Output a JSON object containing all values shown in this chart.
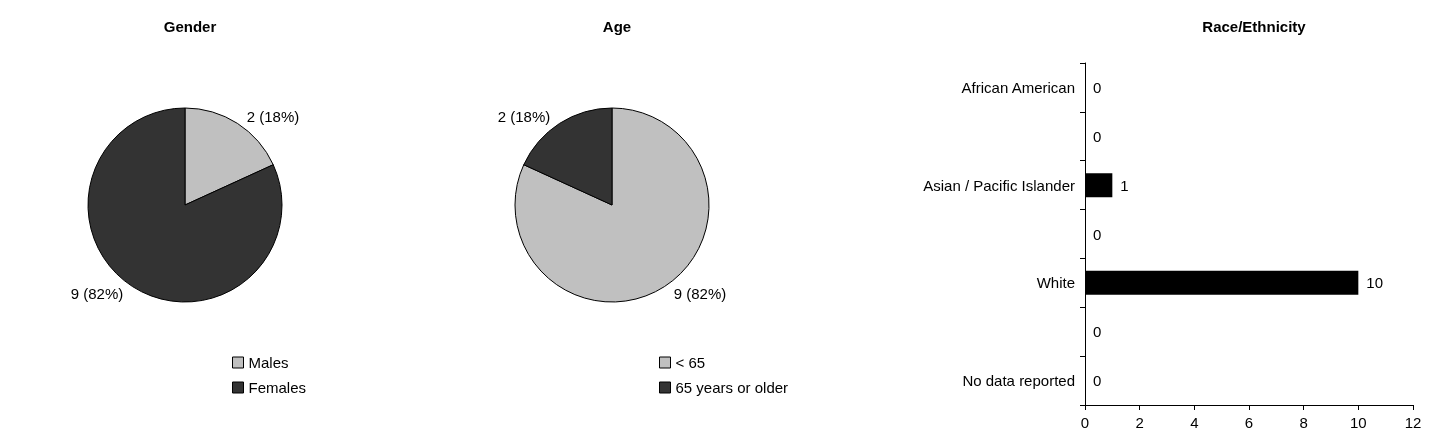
{
  "chart_data": [
    {
      "type": "pie",
      "title": "Gender",
      "categories": [
        "Males",
        "Females"
      ],
      "values": [
        2,
        9
      ],
      "colors": [
        "#c0c0c0",
        "#333333"
      ],
      "value_labels": [
        "2 (18%)",
        "9 (82%)"
      ],
      "legend": "bottom"
    },
    {
      "type": "pie",
      "title": "Age",
      "categories": [
        "< 65",
        "65 years or older"
      ],
      "values": [
        9,
        2
      ],
      "colors": [
        "#c0c0c0",
        "#333333"
      ],
      "value_labels": [
        "9 (82%)",
        "2 (18%)"
      ],
      "legend": "bottom"
    },
    {
      "type": "bar",
      "title": "Race/Ethnicity",
      "orientation": "horizontal",
      "categories": [
        "African American",
        null,
        "Asian / Pacific Islander",
        null,
        "White",
        null,
        "No data reported"
      ],
      "values": [
        0,
        0,
        1,
        0,
        10,
        0,
        0
      ],
      "color": "#000000",
      "xlim": [
        0,
        12
      ],
      "xticks": [
        0,
        2,
        4,
        6,
        8,
        10,
        12
      ],
      "data_labels": true,
      "grid": false,
      "legend": false
    }
  ]
}
